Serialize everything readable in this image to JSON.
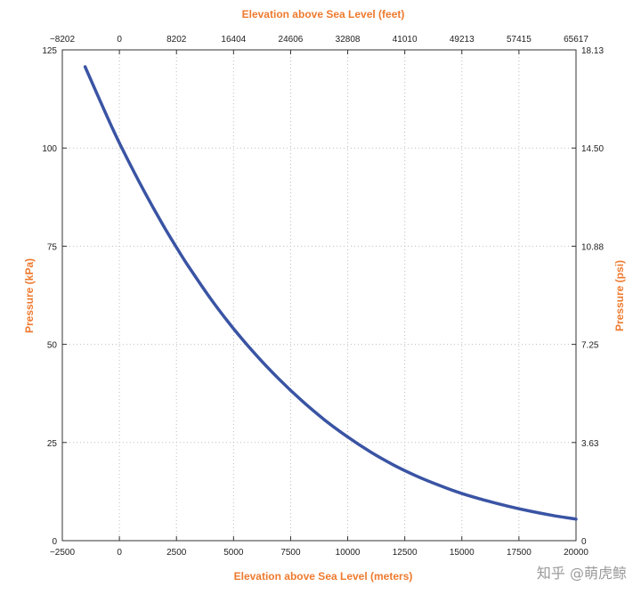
{
  "chart_data": {
    "type": "line",
    "xlabel": "Elevation above Sea Level (meters)",
    "x2label": "Elevation above Sea Level (feet)",
    "ylabel": "Pressure (kPa)",
    "y2label": "Pressure (psi)",
    "xlim": [
      -2500,
      20000
    ],
    "ylim": [
      0,
      125
    ],
    "x_ticks": [
      "−2500",
      "0",
      "2500",
      "5000",
      "7500",
      "10000",
      "12500",
      "15000",
      "17500",
      "20000"
    ],
    "x2_ticks": [
      "−8202",
      "0",
      "8202",
      "16404",
      "24606",
      "32808",
      "41010",
      "49213",
      "57415",
      "65617"
    ],
    "y_ticks": [
      "0",
      "25",
      "50",
      "75",
      "100",
      "125"
    ],
    "y2_ticks": [
      "0",
      "3.63",
      "7.25",
      "10.88",
      "14.50",
      "18.13"
    ],
    "grid": true,
    "colors": {
      "line": "#3a54a4",
      "axis_title": "#ee7a2e",
      "grid": "#bdbdbd"
    },
    "series": [
      {
        "x": [
          -1500,
          -500,
          0,
          500,
          1000,
          1500,
          2000,
          2500,
          3000,
          4000,
          5000,
          6000,
          7000,
          8000,
          9000,
          10000,
          11000,
          12000,
          13000,
          14000,
          15000,
          16000,
          17000,
          18000,
          19000,
          20000
        ],
        "values": [
          120.7,
          107.5,
          101.3,
          95.5,
          89.9,
          84.6,
          79.5,
          74.7,
          70.1,
          61.6,
          54.0,
          47.2,
          41.1,
          35.6,
          30.7,
          26.4,
          22.6,
          19.3,
          16.5,
          14.1,
          12.0,
          10.3,
          8.8,
          7.5,
          6.4,
          5.5
        ]
      }
    ]
  },
  "watermark": "知乎 @萌虎鲸"
}
